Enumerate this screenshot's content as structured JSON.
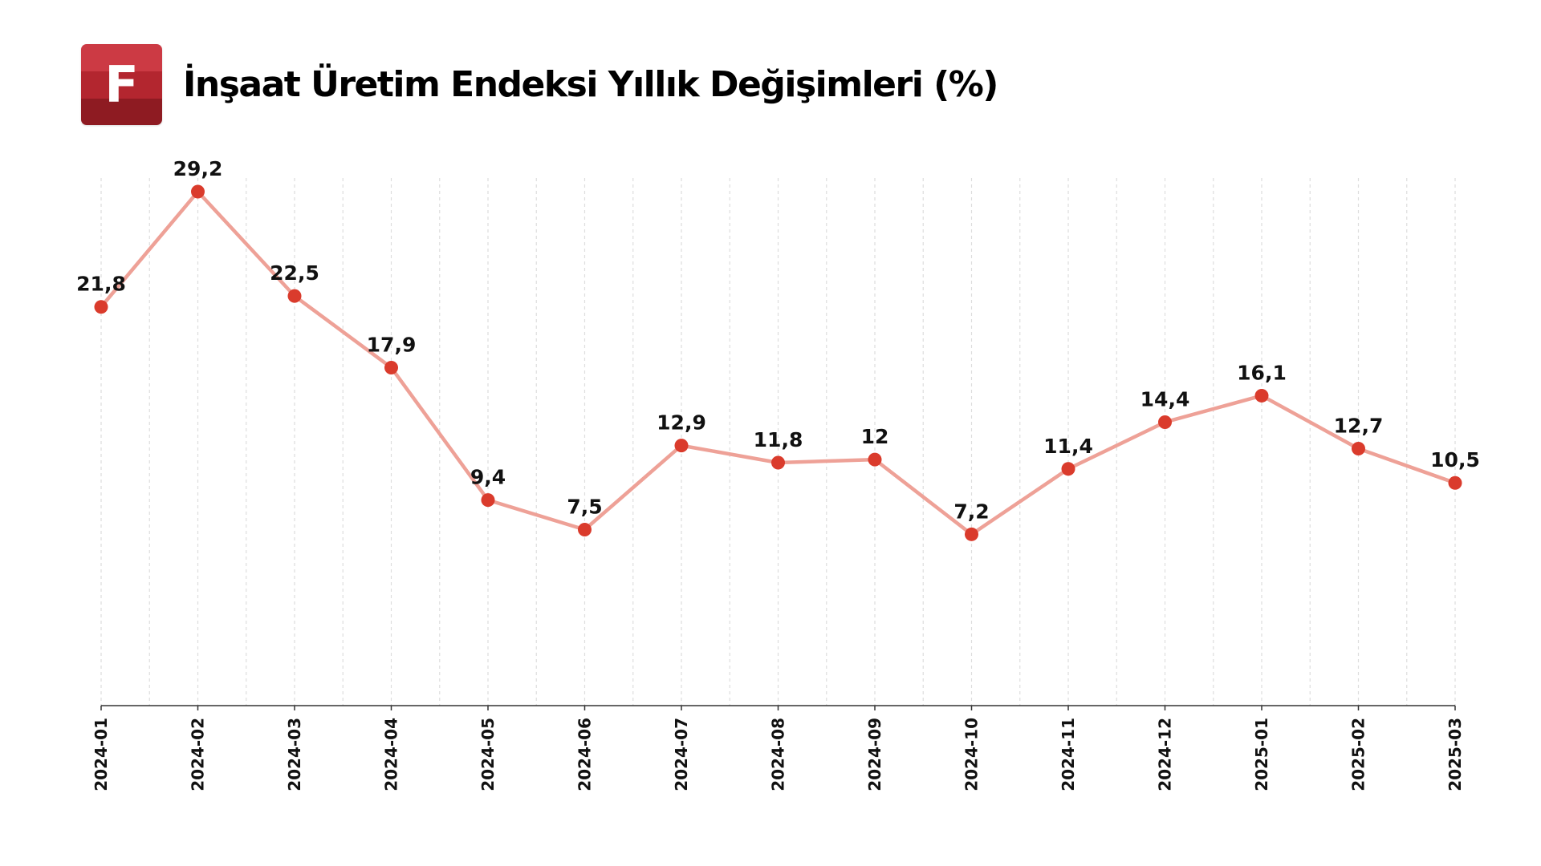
{
  "header": {
    "logo_letter": "F",
    "title": "İnşaat Üretim Endeksi Yıllık Değişimleri (%)"
  },
  "colors": {
    "line": "#eea197",
    "marker": "#da3b2c",
    "grid": "#dddddd",
    "axis": "#333333",
    "logo_top": "#cc3a44",
    "logo_mid": "#b3262f",
    "logo_bottom": "#8e1b22"
  },
  "chart_data": {
    "type": "line",
    "title": "İnşaat Üretim Endeksi Yıllık Değişimleri (%)",
    "xlabel": "",
    "ylabel": "",
    "categories": [
      "2024-01",
      "2024-02",
      "2024-03",
      "2024-04",
      "2024-05",
      "2024-06",
      "2024-07",
      "2024-08",
      "2024-09",
      "2024-10",
      "2024-11",
      "2024-12",
      "2025-01",
      "2025-02",
      "2025-03"
    ],
    "values": [
      21.8,
      29.2,
      22.5,
      17.9,
      9.4,
      7.5,
      12.9,
      11.8,
      12,
      7.2,
      11.4,
      14.4,
      16.1,
      12.7,
      10.5
    ],
    "labels": [
      "21,8",
      "29,2",
      "22,5",
      "17,9",
      "9,4",
      "7,5",
      "12,9",
      "11,8",
      "12",
      "7,2",
      "11,4",
      "14,4",
      "16,1",
      "12,7",
      "10,5"
    ],
    "ylim": [
      -3.8,
      29.2
    ],
    "grid": "vertical dashed",
    "legend": "none",
    "data_labels": true
  }
}
